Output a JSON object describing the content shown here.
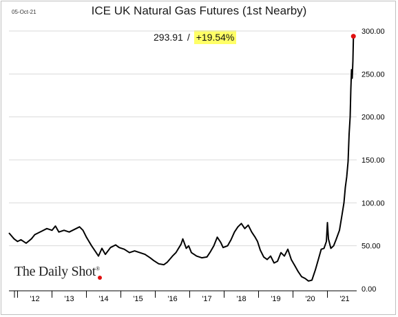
{
  "header": {
    "date": "05-Oct-21",
    "title": "ICE UK Natural Gas Futures (1st Nearby)"
  },
  "readout": {
    "last_value": "293.91",
    "separator": "/",
    "change": "+19.54%"
  },
  "branding": {
    "logo_text": "The Daily Shot",
    "logo_mark": "®"
  },
  "colors": {
    "line": "#000000",
    "last_point": "#e01010",
    "highlight": "#ffff66",
    "grid": "#d9d9d9"
  },
  "chart_data": {
    "type": "line",
    "title": "ICE UK Natural Gas Futures (1st Nearby)",
    "xlabel": "",
    "ylabel": "",
    "x_tick_labels": [
      "'12",
      "'13",
      "'14",
      "'15",
      "'16",
      "'17",
      "'18",
      "'19",
      "'20",
      "'21"
    ],
    "y_tick_labels": [
      "0.00",
      "50.00",
      "100.00",
      "150.00",
      "200.00",
      "250.00",
      "300.00"
    ],
    "ylim": [
      0,
      300
    ],
    "xlim": [
      2011.75,
      2021.85
    ],
    "grid": true,
    "y_axis_side": "right",
    "series": [
      {
        "points": [
          [
            2011.75,
            65
          ],
          [
            2011.9,
            58
          ],
          [
            2012.0,
            55
          ],
          [
            2012.1,
            57
          ],
          [
            2012.25,
            53
          ],
          [
            2012.4,
            58
          ],
          [
            2012.5,
            63
          ],
          [
            2012.7,
            67
          ],
          [
            2012.85,
            70
          ],
          [
            2013.0,
            68
          ],
          [
            2013.1,
            73
          ],
          [
            2013.2,
            66
          ],
          [
            2013.35,
            68
          ],
          [
            2013.5,
            66
          ],
          [
            2013.7,
            70
          ],
          [
            2013.8,
            72
          ],
          [
            2013.9,
            68
          ],
          [
            2014.0,
            60
          ],
          [
            2014.15,
            50
          ],
          [
            2014.25,
            44
          ],
          [
            2014.35,
            38
          ],
          [
            2014.45,
            47
          ],
          [
            2014.55,
            40
          ],
          [
            2014.7,
            48
          ],
          [
            2014.85,
            51
          ],
          [
            2014.95,
            48
          ],
          [
            2015.1,
            46
          ],
          [
            2015.25,
            42
          ],
          [
            2015.4,
            44
          ],
          [
            2015.55,
            42
          ],
          [
            2015.7,
            40
          ],
          [
            2015.85,
            36
          ],
          [
            2015.95,
            33
          ],
          [
            2016.1,
            29
          ],
          [
            2016.25,
            28
          ],
          [
            2016.35,
            31
          ],
          [
            2016.5,
            38
          ],
          [
            2016.6,
            42
          ],
          [
            2016.75,
            52
          ],
          [
            2016.8,
            58
          ],
          [
            2016.9,
            47
          ],
          [
            2016.97,
            50
          ],
          [
            2017.05,
            42
          ],
          [
            2017.2,
            38
          ],
          [
            2017.35,
            36
          ],
          [
            2017.5,
            37
          ],
          [
            2017.6,
            43
          ],
          [
            2017.7,
            50
          ],
          [
            2017.8,
            60
          ],
          [
            2017.9,
            54
          ],
          [
            2017.97,
            48
          ],
          [
            2018.1,
            50
          ],
          [
            2018.2,
            57
          ],
          [
            2018.3,
            66
          ],
          [
            2018.4,
            72
          ],
          [
            2018.5,
            76
          ],
          [
            2018.6,
            70
          ],
          [
            2018.7,
            74
          ],
          [
            2018.8,
            66
          ],
          [
            2018.9,
            60
          ],
          [
            2018.97,
            55
          ],
          [
            2019.05,
            45
          ],
          [
            2019.15,
            37
          ],
          [
            2019.25,
            34
          ],
          [
            2019.35,
            38
          ],
          [
            2019.45,
            30
          ],
          [
            2019.55,
            32
          ],
          [
            2019.65,
            42
          ],
          [
            2019.75,
            38
          ],
          [
            2019.85,
            46
          ],
          [
            2019.95,
            34
          ],
          [
            2020.05,
            27
          ],
          [
            2020.15,
            20
          ],
          [
            2020.25,
            14
          ],
          [
            2020.35,
            12
          ],
          [
            2020.45,
            9
          ],
          [
            2020.55,
            10
          ],
          [
            2020.65,
            22
          ],
          [
            2020.75,
            36
          ],
          [
            2020.82,
            46
          ],
          [
            2020.9,
            47
          ],
          [
            2020.97,
            55
          ],
          [
            2021.0,
            77
          ],
          [
            2021.03,
            58
          ],
          [
            2021.1,
            47
          ],
          [
            2021.18,
            50
          ],
          [
            2021.25,
            57
          ],
          [
            2021.35,
            68
          ],
          [
            2021.42,
            85
          ],
          [
            2021.48,
            100
          ],
          [
            2021.52,
            118
          ],
          [
            2021.56,
            130
          ],
          [
            2021.6,
            148
          ],
          [
            2021.63,
            180
          ],
          [
            2021.66,
            200
          ],
          [
            2021.68,
            232
          ],
          [
            2021.7,
            255
          ],
          [
            2021.72,
            245
          ],
          [
            2021.74,
            265
          ],
          [
            2021.755,
            293.91
          ]
        ]
      }
    ],
    "last_point": {
      "x": 2021.755,
      "y": 293.91
    }
  }
}
